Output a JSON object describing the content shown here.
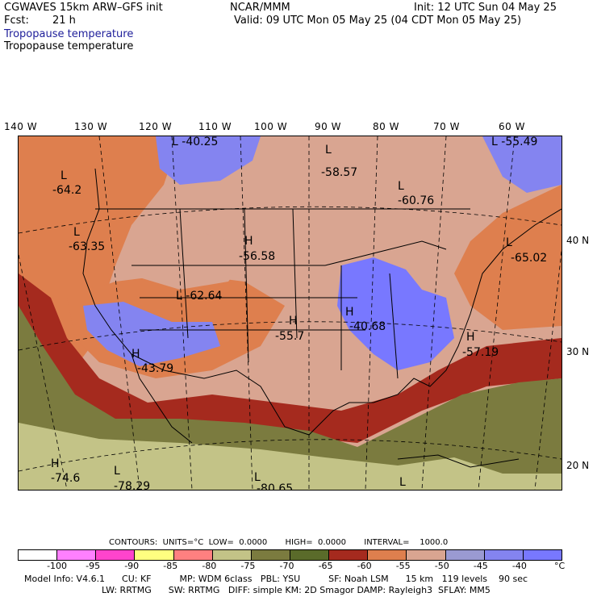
{
  "header": {
    "model": "CGWAVES 15km ARW–GFS init",
    "fcst_label": "Fcst:",
    "fcst_value": "21 h",
    "org": "NCAR/MMM",
    "init": "Init: 12 UTC Sun 04 May 25",
    "valid": "Valid: 09 UTC Mon 05 May 25 (04 CDT Mon 05 May 25)",
    "field_title_1": "Tropopause temperature",
    "field_title_2": "Tropopause temperature"
  },
  "longitude_labels": [
    "140 W",
    "130 W",
    "120 W",
    "110 W",
    "100 W",
    "90 W",
    "80 W",
    "70 W",
    "60 W"
  ],
  "latitude_labels": [
    "40 N",
    "30 N",
    "20 N"
  ],
  "map_annotations": [
    {
      "letter": "L",
      "value": "-40.25"
    },
    {
      "letter": "L",
      "value": "-58.57"
    },
    {
      "letter": "L",
      "value": "-55.49"
    },
    {
      "letter": "L",
      "value": "-64.2"
    },
    {
      "letter": "L",
      "value": "-60.76"
    },
    {
      "letter": "L",
      "value": "-63.35"
    },
    {
      "letter": "H",
      "value": "-56.58"
    },
    {
      "letter": "L",
      "value": "-65.02"
    },
    {
      "letter": "L",
      "value": "-62.64"
    },
    {
      "letter": "H",
      "value": "-55.7"
    },
    {
      "letter": "H",
      "value": "-40.68"
    },
    {
      "letter": "H",
      "value": "-57.19"
    },
    {
      "letter": "H",
      "value": "-43.79"
    },
    {
      "letter": "H",
      "value": "-74.6"
    },
    {
      "letter": "L",
      "value": "-78.29"
    },
    {
      "letter": "L",
      "value": "-80.65"
    },
    {
      "letter": "L",
      "value": ""
    }
  ],
  "contours_line": "CONTOURS:  UNITS=°C  LOW=  0.0000       HIGH=  0.0000       INTERVAL=    1000.0",
  "legend": {
    "colors": [
      "#ffffff",
      "#ff80ff",
      "#ff44cc",
      "#ffff80",
      "#ff8080",
      "#c3c387",
      "#7b7b3f",
      "#5a6b2a",
      "#a52a1e",
      "#de7f4e",
      "#d9a591",
      "#9a9ad2",
      "#8484f0",
      "#7878ff"
    ],
    "tick_labels": [
      "-100",
      "-95",
      "-90",
      "-85",
      "-80",
      "-75",
      "-70",
      "-65",
      "-60",
      "-55",
      "-50",
      "-45",
      "-40",
      "°C"
    ]
  },
  "footer": {
    "line1": "Model Info: V4.6.1      CU: KF          MP: WDM 6class   PBL: YSU          SF: Noah LSM      15 km   119 levels    90 sec",
    "line2": "LW: RRTMG      SW: RRTMG   DIFF: simple KM: 2D Smagor DAMP: Rayleigh3  SFLAY: MM5"
  }
}
